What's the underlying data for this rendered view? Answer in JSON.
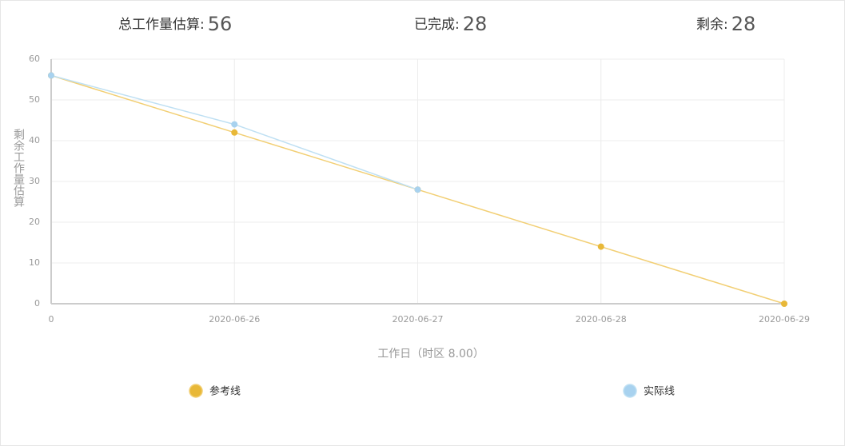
{
  "summary": [
    {
      "label": "总工作量估算:",
      "value": "56"
    },
    {
      "label": "已完成:",
      "value": "28"
    },
    {
      "label": "剩余:",
      "value": "28"
    }
  ],
  "chart_data": {
    "type": "line",
    "ylabel": "剩余工作量估算",
    "xlabel": "工作日（时区 8.00）",
    "categories": [
      "0",
      "2020-06-26",
      "2020-06-27",
      "2020-06-28",
      "2020-06-29"
    ],
    "series": [
      {
        "name": "参考线",
        "color": "#f2cf74",
        "point_color": "#e8b838",
        "values": [
          56,
          42,
          28,
          14,
          0
        ]
      },
      {
        "name": "实际线",
        "color": "#bfe0f3",
        "point_color": "#a8d2ef",
        "values": [
          56,
          44,
          28,
          null,
          null
        ]
      }
    ],
    "ylim": [
      0,
      60
    ],
    "yticks": [
      0,
      10,
      20,
      30,
      40,
      50,
      60
    ],
    "grid": true
  }
}
